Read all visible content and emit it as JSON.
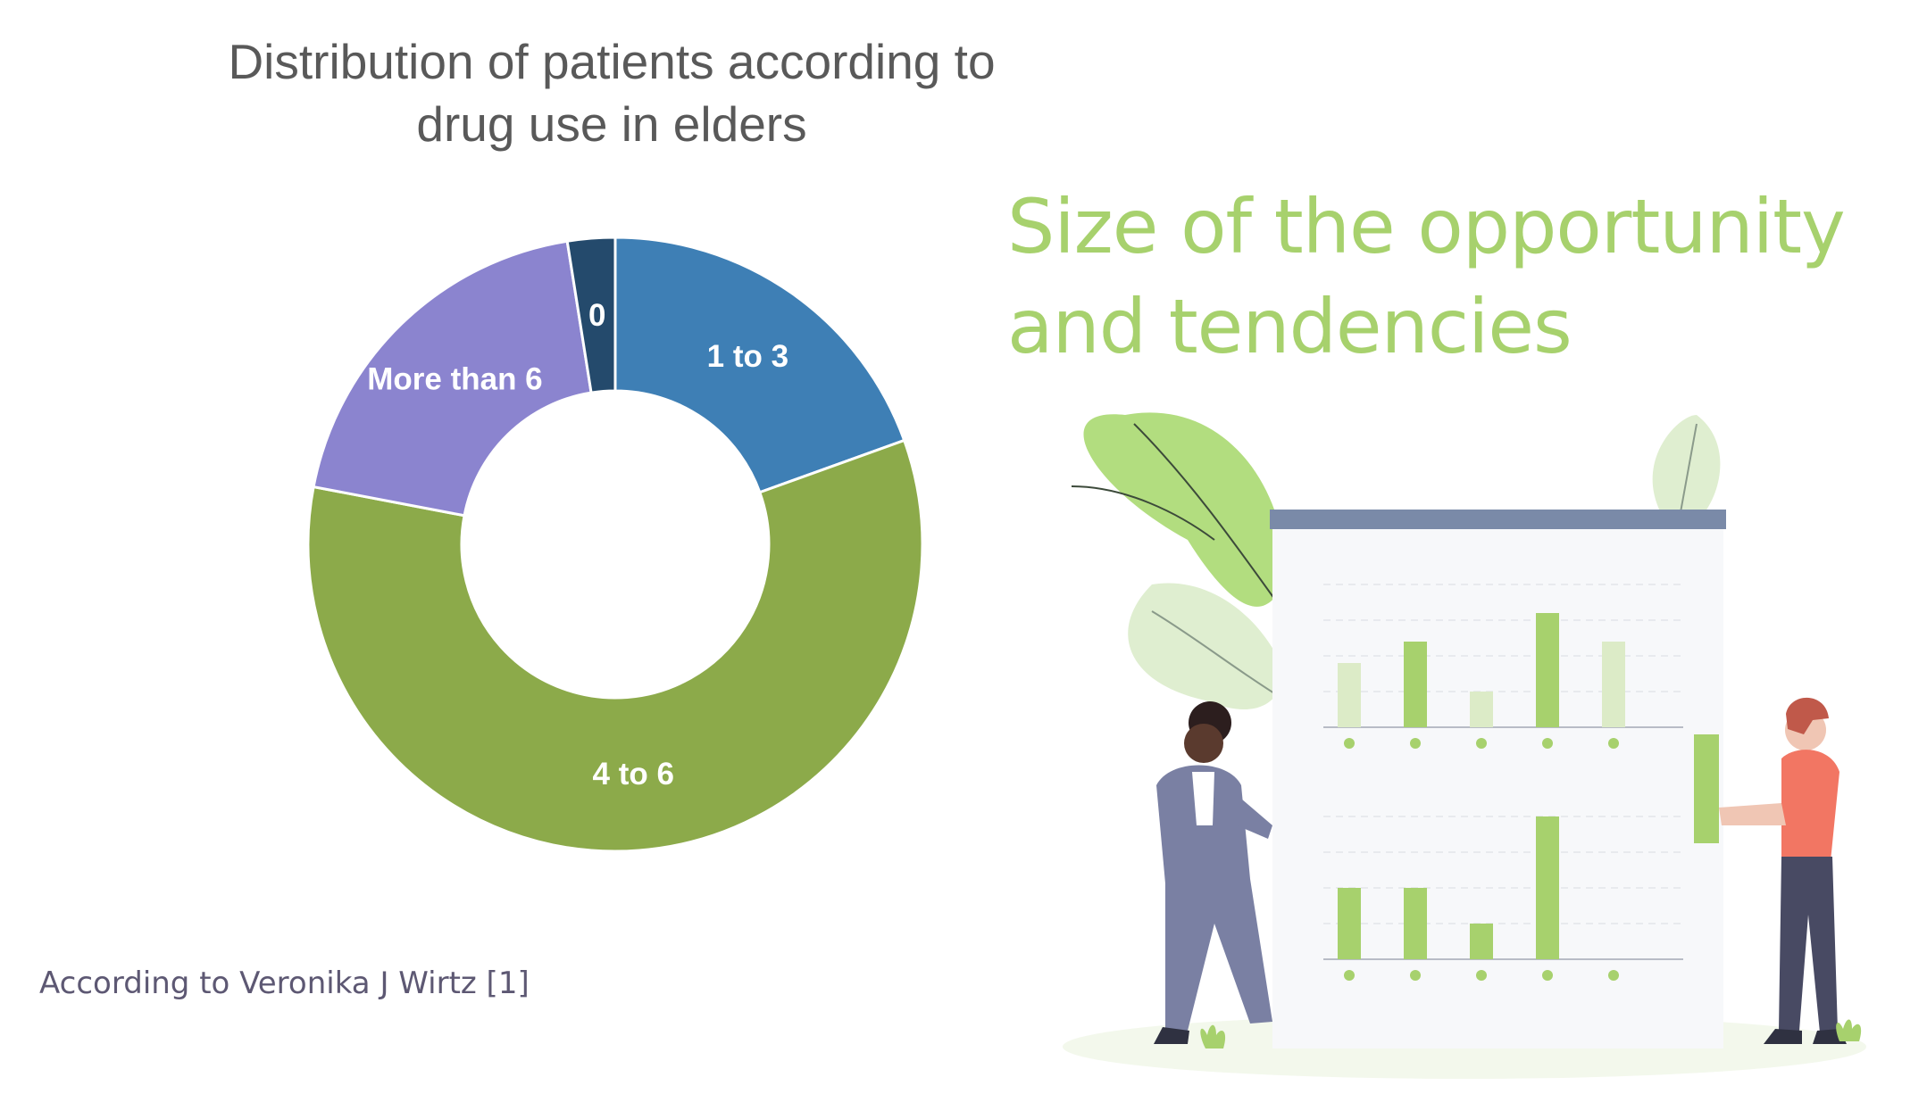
{
  "chart_data": {
    "type": "pie",
    "title": "Distribution of patients according to drug use in elders",
    "title_lines": [
      "Distribution of patients according to",
      "drug use in elders"
    ],
    "hole": 0.5,
    "categories": [
      "1 to 3",
      "4 to 6",
      "More than 6",
      "0"
    ],
    "values": [
      19.5,
      58.5,
      19.5,
      2.5
    ],
    "colors": [
      "#3e7fb5",
      "#8caa4a",
      "#8b84cf",
      "#244a6c"
    ],
    "labels": [
      "1 to 3",
      "4 to 6",
      "More than 6",
      "0"
    ]
  },
  "slide": {
    "headline_lines": [
      "Size of the opportunity",
      "and tendencies"
    ],
    "source": "According to Veronika J Wirtz [1]"
  },
  "colors": {
    "accent": "#a7d16d",
    "title": "#595959",
    "source": "#5d5873"
  },
  "illustration": {
    "icon": "people-with-bar-chart-board-illustration",
    "board_bars_top": [
      0.45,
      0.6,
      0.25,
      0.8,
      0.6
    ],
    "board_bars_bottom": [
      0.5,
      0.5,
      0.25,
      1.0,
      0.0
    ]
  }
}
